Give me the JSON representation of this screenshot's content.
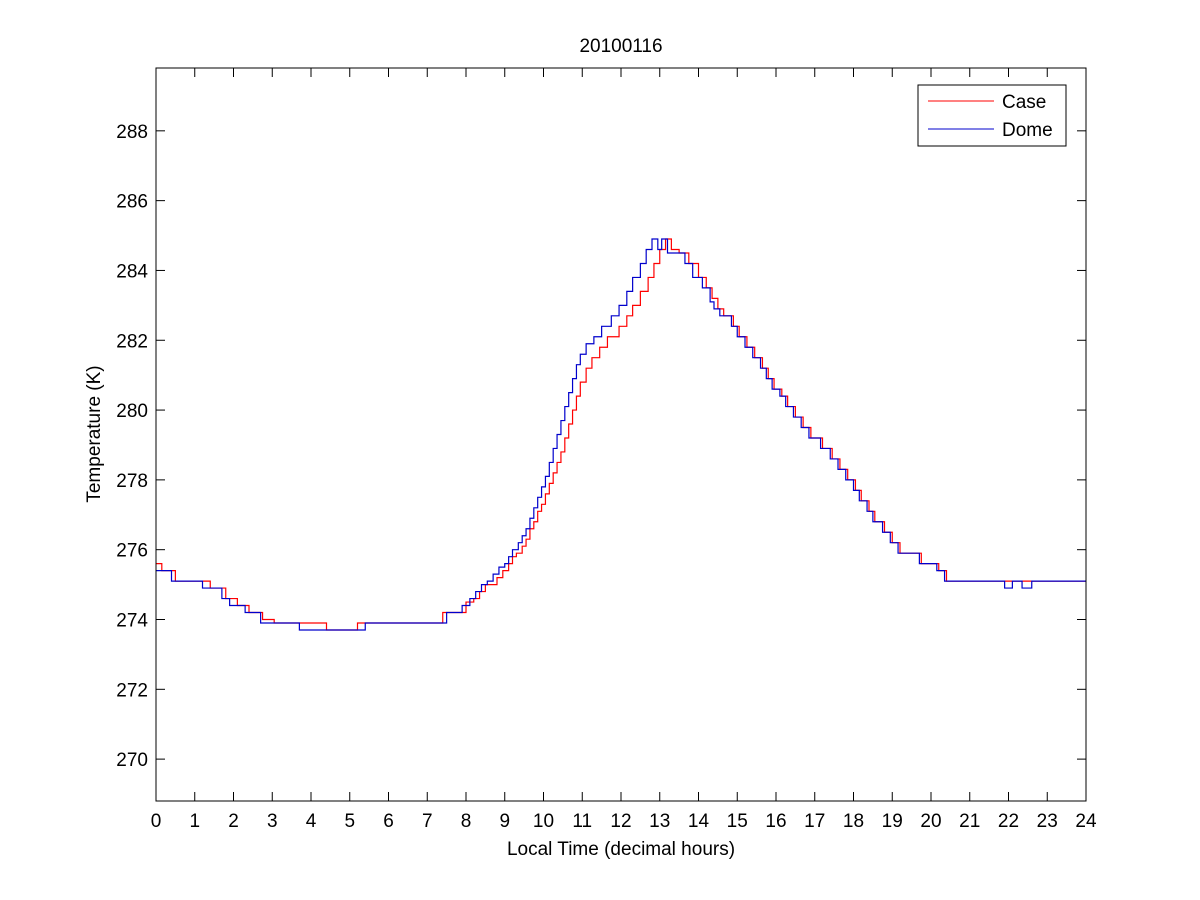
{
  "chart_data": {
    "type": "line",
    "title": "20100116",
    "xlabel": "Local Time (decimal hours)",
    "ylabel": "Temperature (K)",
    "xlim": [
      0,
      24
    ],
    "ylim": [
      268.8,
      289.8
    ],
    "xticks": [
      0,
      1,
      2,
      3,
      4,
      5,
      6,
      7,
      8,
      9,
      10,
      11,
      12,
      13,
      14,
      15,
      16,
      17,
      18,
      19,
      20,
      21,
      22,
      23,
      24
    ],
    "yticks": [
      270,
      272,
      274,
      276,
      278,
      280,
      282,
      284,
      286,
      288
    ],
    "grid": false,
    "legend_position": "top-right",
    "series": [
      {
        "name": "Case",
        "color": "#ff0000",
        "step": true,
        "x": [
          0,
          0.15,
          0.5,
          1.4,
          1.6,
          1.8,
          2.1,
          2.4,
          2.75,
          3.05,
          3.5,
          4.4,
          5.2,
          7.4,
          7.55,
          8.0,
          8.2,
          8.35,
          8.5,
          8.65,
          8.8,
          8.95,
          9.1,
          9.2,
          9.3,
          9.45,
          9.55,
          9.65,
          9.75,
          9.85,
          9.95,
          10.05,
          10.15,
          10.25,
          10.35,
          10.45,
          10.55,
          10.65,
          10.75,
          10.85,
          10.95,
          11.1,
          11.25,
          11.45,
          11.65,
          11.95,
          12.15,
          12.3,
          12.5,
          12.7,
          12.85,
          13.0,
          13.15,
          13.3,
          13.5,
          13.75,
          14.0,
          14.2,
          14.35,
          14.5,
          14.65,
          14.75,
          14.9,
          15.05,
          15.25,
          15.45,
          15.65,
          15.8,
          15.95,
          16.15,
          16.3,
          16.5,
          16.7,
          16.9,
          17.2,
          17.45,
          17.65,
          17.85,
          18.05,
          18.2,
          18.4,
          18.55,
          18.8,
          19.0,
          19.2,
          19.4,
          19.55,
          19.75,
          19.9,
          20.05,
          20.2,
          20.4,
          20.7,
          21.15,
          21.5,
          22.0,
          22.3,
          22.5,
          22.7,
          23.1,
          24
        ],
        "values": [
          275.6,
          275.4,
          275.1,
          274.9,
          274.9,
          274.6,
          274.4,
          274.2,
          274.0,
          273.9,
          273.9,
          273.7,
          273.9,
          274.2,
          274.2,
          274.5,
          274.6,
          274.8,
          275.0,
          275.0,
          275.2,
          275.4,
          275.6,
          275.8,
          275.9,
          276.1,
          276.3,
          276.6,
          276.8,
          277.1,
          277.3,
          277.6,
          277.9,
          278.2,
          278.5,
          278.8,
          279.2,
          279.6,
          280.0,
          280.4,
          280.8,
          281.2,
          281.5,
          281.8,
          282.1,
          282.4,
          282.7,
          283.0,
          283.4,
          283.8,
          284.2,
          284.6,
          284.9,
          284.6,
          284.5,
          284.2,
          283.8,
          283.5,
          283.2,
          282.9,
          282.7,
          282.7,
          282.4,
          282.1,
          281.8,
          281.5,
          281.2,
          280.9,
          280.6,
          280.4,
          280.1,
          279.8,
          279.5,
          279.2,
          278.9,
          278.6,
          278.3,
          278.0,
          277.7,
          277.4,
          277.1,
          276.8,
          276.5,
          276.2,
          275.9,
          275.9,
          275.9,
          275.6,
          275.6,
          275.6,
          275.4,
          275.1,
          275.1,
          275.1,
          275.1,
          275.1,
          275.1,
          275.1,
          275.1,
          275.1,
          275.1
        ]
      },
      {
        "name": "Dome",
        "color": "#0000cc",
        "step": true,
        "x": [
          0,
          0.4,
          1.2,
          1.4,
          1.7,
          1.9,
          2.3,
          2.6,
          2.7,
          2.75,
          3.0,
          3.3,
          3.7,
          5.4,
          5.5,
          7.3,
          7.5,
          7.9,
          8.1,
          8.25,
          8.4,
          8.55,
          8.7,
          8.85,
          9.0,
          9.1,
          9.2,
          9.35,
          9.45,
          9.55,
          9.65,
          9.75,
          9.85,
          9.95,
          10.05,
          10.15,
          10.25,
          10.35,
          10.45,
          10.55,
          10.65,
          10.75,
          10.85,
          10.95,
          11.1,
          11.3,
          11.5,
          11.75,
          11.95,
          12.15,
          12.3,
          12.5,
          12.65,
          12.8,
          12.95,
          13.05,
          13.2,
          13.4,
          13.65,
          13.85,
          14.1,
          14.3,
          14.4,
          14.55,
          14.7,
          14.85,
          15.0,
          15.2,
          15.4,
          15.6,
          15.75,
          15.9,
          16.1,
          16.25,
          16.45,
          16.65,
          16.85,
          17.15,
          17.4,
          17.6,
          17.8,
          18.0,
          18.15,
          18.35,
          18.5,
          18.75,
          18.95,
          19.15,
          19.35,
          19.5,
          19.7,
          19.85,
          20.0,
          20.15,
          20.35,
          20.65,
          21.1,
          21.45,
          21.9,
          22.1,
          22.35,
          22.6,
          22.95,
          23.2,
          24
        ],
        "values": [
          275.4,
          275.1,
          274.9,
          274.9,
          274.6,
          274.4,
          274.2,
          274.2,
          273.9,
          273.9,
          273.9,
          273.9,
          273.7,
          273.9,
          273.9,
          273.9,
          274.2,
          274.4,
          274.6,
          274.8,
          275.0,
          275.1,
          275.3,
          275.5,
          275.6,
          275.8,
          276.0,
          276.2,
          276.4,
          276.6,
          276.9,
          277.2,
          277.5,
          277.8,
          278.1,
          278.5,
          278.9,
          279.3,
          279.7,
          280.1,
          280.5,
          280.9,
          281.3,
          281.6,
          281.9,
          282.1,
          282.4,
          282.7,
          283.0,
          283.4,
          283.8,
          284.2,
          284.6,
          284.9,
          284.6,
          284.9,
          284.5,
          284.5,
          284.2,
          283.8,
          283.5,
          283.1,
          282.9,
          282.7,
          282.7,
          282.4,
          282.1,
          281.8,
          281.5,
          281.2,
          280.9,
          280.6,
          280.4,
          280.1,
          279.8,
          279.5,
          279.2,
          278.9,
          278.6,
          278.3,
          278.0,
          277.7,
          277.4,
          277.1,
          276.8,
          276.5,
          276.2,
          275.9,
          275.9,
          275.9,
          275.6,
          275.6,
          275.6,
          275.4,
          275.1,
          275.1,
          275.1,
          275.1,
          274.9,
          275.1,
          274.9,
          275.1,
          275.1,
          275.1,
          275.1
        ]
      }
    ]
  }
}
